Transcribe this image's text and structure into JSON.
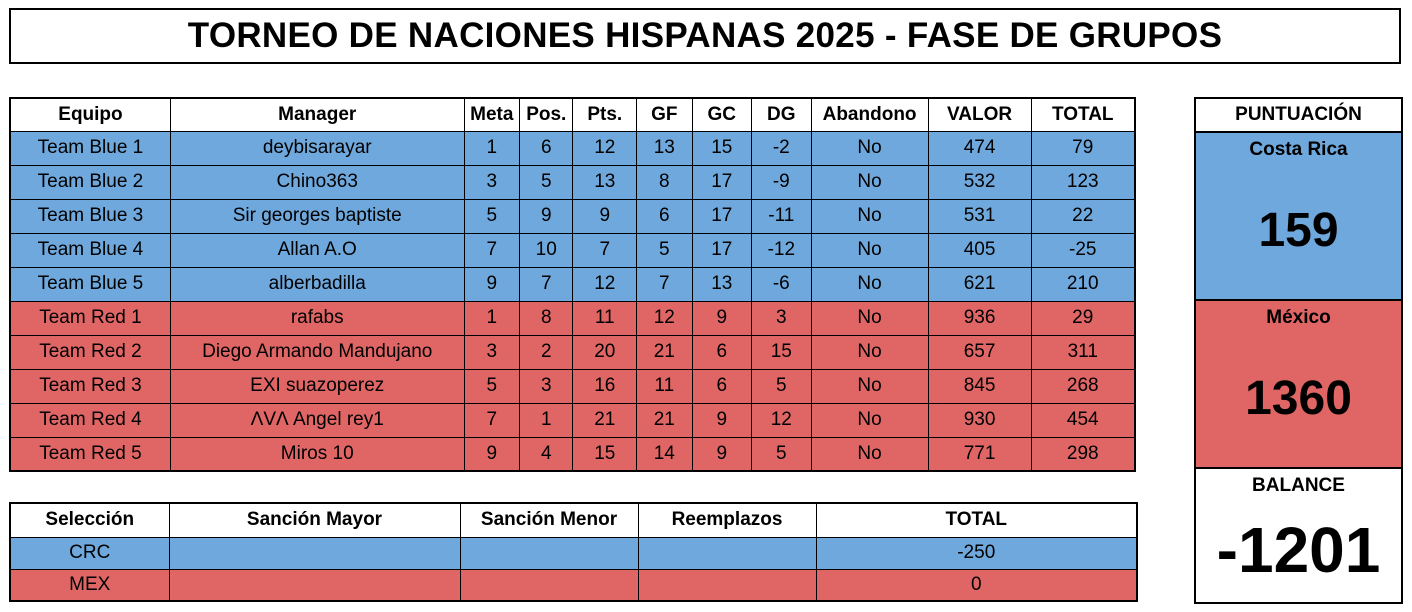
{
  "title": "TORNEO DE NACIONES HISPANAS 2025 - FASE DE GRUPOS",
  "colors": {
    "blue": "#6fa8dc",
    "red": "#e06666"
  },
  "main_table": {
    "headers": [
      "Equipo",
      "Manager",
      "Meta",
      "Pos.",
      "Pts.",
      "GF",
      "GC",
      "DG",
      "Abandono",
      "VALOR",
      "TOTAL"
    ],
    "rows": [
      {
        "team": "blue",
        "cells": [
          "Team Blue 1",
          "deybisarayar",
          "1",
          "6",
          "12",
          "13",
          "15",
          "-2",
          "No",
          "474",
          "79"
        ]
      },
      {
        "team": "blue",
        "cells": [
          "Team Blue 2",
          "Chino363",
          "3",
          "5",
          "13",
          "8",
          "17",
          "-9",
          "No",
          "532",
          "123"
        ]
      },
      {
        "team": "blue",
        "cells": [
          "Team Blue 3",
          "Sir georges baptiste",
          "5",
          "9",
          "9",
          "6",
          "17",
          "-11",
          "No",
          "531",
          "22"
        ]
      },
      {
        "team": "blue",
        "cells": [
          "Team Blue 4",
          "Allan A.O",
          "7",
          "10",
          "7",
          "5",
          "17",
          "-12",
          "No",
          "405",
          "-25"
        ]
      },
      {
        "team": "blue",
        "cells": [
          "Team Blue 5",
          "alberbadilla",
          "9",
          "7",
          "12",
          "7",
          "13",
          "-6",
          "No",
          "621",
          "210"
        ]
      },
      {
        "team": "red",
        "cells": [
          "Team Red 1",
          "rafabs",
          "1",
          "8",
          "11",
          "12",
          "9",
          "3",
          "No",
          "936",
          "29"
        ]
      },
      {
        "team": "red",
        "cells": [
          "Team Red 2",
          "Diego Armando Mandujano",
          "3",
          "2",
          "20",
          "21",
          "6",
          "15",
          "No",
          "657",
          "311"
        ]
      },
      {
        "team": "red",
        "cells": [
          "Team Red 3",
          "EXI suazoperez",
          "5",
          "3",
          "16",
          "11",
          "6",
          "5",
          "No",
          "845",
          "268"
        ]
      },
      {
        "team": "red",
        "cells": [
          "Team Red 4",
          "ΛVΛ Angel rey1",
          "7",
          "1",
          "21",
          "21",
          "9",
          "12",
          "No",
          "930",
          "454"
        ]
      },
      {
        "team": "red",
        "cells": [
          "Team Red 5",
          "Miros 10",
          "9",
          "4",
          "15",
          "14",
          "9",
          "5",
          "No",
          "771",
          "298"
        ]
      }
    ]
  },
  "sanctions_table": {
    "headers": [
      "Selección",
      "Sanción Mayor",
      "Sanción Menor",
      "Reemplazos",
      "TOTAL"
    ],
    "rows": [
      {
        "team": "blue",
        "cells": [
          "CRC",
          "",
          "",
          "",
          "-250"
        ]
      },
      {
        "team": "red",
        "cells": [
          "MEX",
          "",
          "",
          "",
          "0"
        ]
      }
    ]
  },
  "score_panel": {
    "heading": "PUNTUACIÓN",
    "crc_name": "Costa Rica",
    "crc_score": "159",
    "mex_name": "México",
    "mex_score": "1360",
    "balance_label": "BALANCE",
    "balance_value": "-1201"
  }
}
